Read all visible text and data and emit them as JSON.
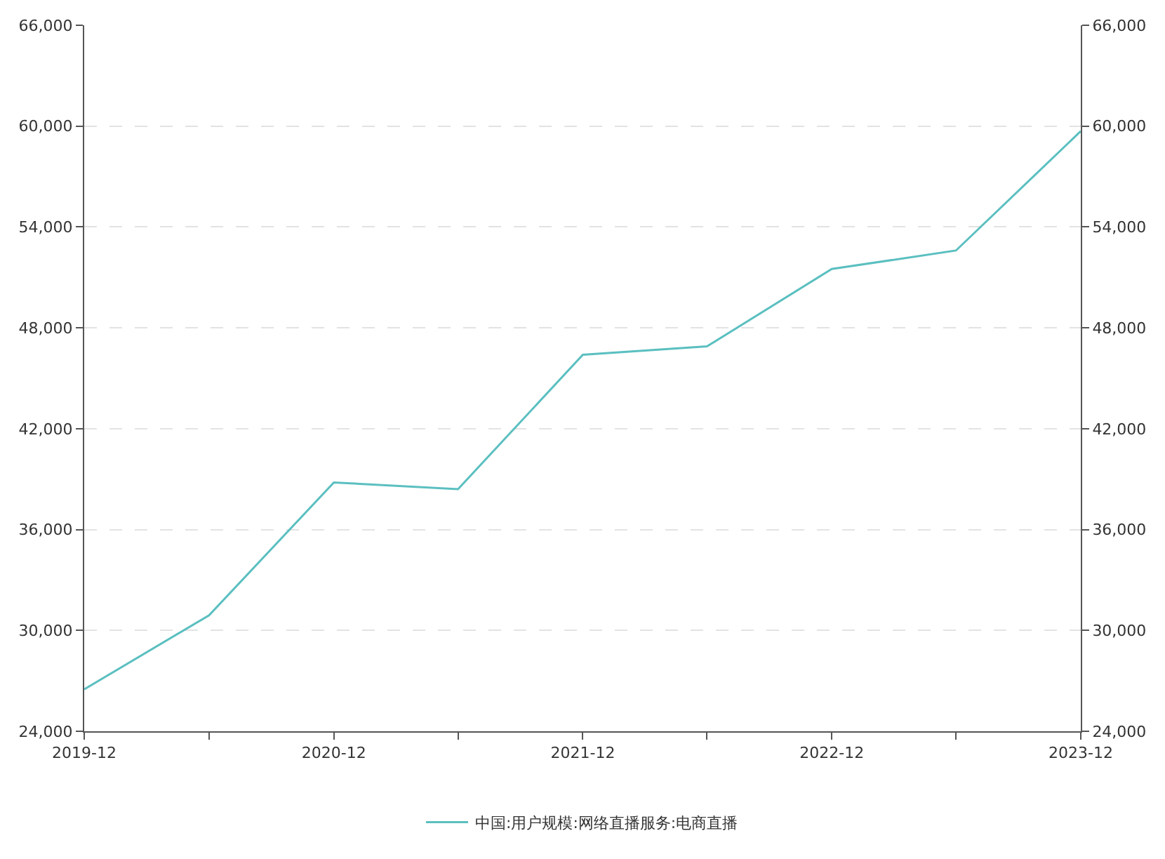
{
  "chart_data": {
    "type": "line",
    "x": [
      "2019-12",
      "2020-06",
      "2020-12",
      "2021-06",
      "2021-12",
      "2022-06",
      "2022-12",
      "2023-06",
      "2023-12"
    ],
    "series": [
      {
        "name": "中国:用户规模:网络直播服务:电商直播",
        "color": "#5bbfc0",
        "values": [
          26500,
          30900,
          38800,
          38400,
          46400,
          46900,
          51500,
          52600,
          59700
        ]
      }
    ],
    "xlim": [
      "2019-12",
      "2023-12"
    ],
    "xticks": [
      {
        "value": "2019-12",
        "label": "2019-12"
      },
      {
        "value": "2020-06",
        "label": null
      },
      {
        "value": "2020-12",
        "label": "2020-12"
      },
      {
        "value": "2021-06",
        "label": null
      },
      {
        "value": "2021-12",
        "label": "2021-12"
      },
      {
        "value": "2022-06",
        "label": null
      },
      {
        "value": "2022-12",
        "label": "2022-12"
      },
      {
        "value": "2023-06",
        "label": null
      },
      {
        "value": "2023-12",
        "label": "2023-12"
      }
    ],
    "ylim": [
      24000,
      66000
    ],
    "yticks": [
      {
        "value": 24000,
        "label": "24,000"
      },
      {
        "value": 30000,
        "label": "30,000"
      },
      {
        "value": 36000,
        "label": "36,000"
      },
      {
        "value": 42000,
        "label": "42,000"
      },
      {
        "value": 48000,
        "label": "48,000"
      },
      {
        "value": 54000,
        "label": "54,000"
      },
      {
        "value": 60000,
        "label": "60,000"
      },
      {
        "value": 66000,
        "label": "66,000"
      }
    ],
    "y2lim": [
      24000,
      66000
    ],
    "y2ticks": [
      {
        "value": 24000,
        "label": "24,000"
      },
      {
        "value": 30000,
        "label": "30,000"
      },
      {
        "value": 36000,
        "label": "36,000"
      },
      {
        "value": 42000,
        "label": "42,000"
      },
      {
        "value": 48000,
        "label": "48,000"
      },
      {
        "value": 54000,
        "label": "54,000"
      },
      {
        "value": 60000,
        "label": "60,000"
      },
      {
        "value": 66000,
        "label": "66,000"
      }
    ],
    "grid": "y",
    "legend": "bottom",
    "marker": "none",
    "line_style": "solid"
  }
}
